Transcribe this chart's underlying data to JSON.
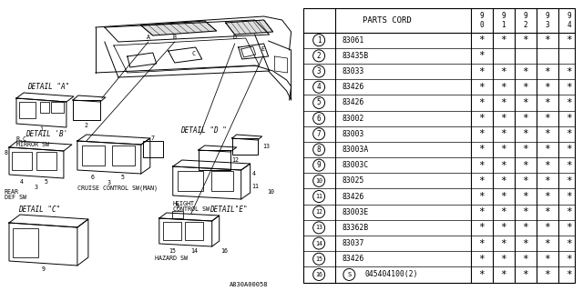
{
  "bg_color": "#ffffff",
  "parts_header": "PARTS CORD",
  "year_cols": [
    "9\n0",
    "9\n1",
    "9\n2",
    "9\n3",
    "9\n4"
  ],
  "rows": [
    {
      "num": 1,
      "part": "83061",
      "stars": [
        1,
        1,
        1,
        1,
        1
      ]
    },
    {
      "num": 2,
      "part": "83435B",
      "stars": [
        1,
        0,
        0,
        0,
        0
      ]
    },
    {
      "num": 3,
      "part": "83033",
      "stars": [
        1,
        1,
        1,
        1,
        1
      ]
    },
    {
      "num": 4,
      "part": "83426",
      "stars": [
        1,
        1,
        1,
        1,
        1
      ]
    },
    {
      "num": 5,
      "part": "83426",
      "stars": [
        1,
        1,
        1,
        1,
        1
      ]
    },
    {
      "num": 6,
      "part": "83002",
      "stars": [
        1,
        1,
        1,
        1,
        1
      ]
    },
    {
      "num": 7,
      "part": "83003",
      "stars": [
        1,
        1,
        1,
        1,
        1
      ]
    },
    {
      "num": 8,
      "part": "83003A",
      "stars": [
        1,
        1,
        1,
        1,
        1
      ]
    },
    {
      "num": 9,
      "part": "83003C",
      "stars": [
        1,
        1,
        1,
        1,
        1
      ]
    },
    {
      "num": 10,
      "part": "83025",
      "stars": [
        1,
        1,
        1,
        1,
        1
      ]
    },
    {
      "num": 11,
      "part": "83426",
      "stars": [
        1,
        1,
        1,
        1,
        1
      ]
    },
    {
      "num": 12,
      "part": "83003E",
      "stars": [
        1,
        1,
        1,
        1,
        1
      ]
    },
    {
      "num": 13,
      "part": "83362B",
      "stars": [
        1,
        1,
        1,
        1,
        1
      ]
    },
    {
      "num": 14,
      "part": "83037",
      "stars": [
        1,
        1,
        1,
        1,
        1
      ]
    },
    {
      "num": 15,
      "part": "83426",
      "stars": [
        1,
        1,
        1,
        1,
        1
      ]
    },
    {
      "num": 16,
      "part": "S045404100(2)",
      "stars": [
        1,
        1,
        1,
        1,
        1
      ]
    }
  ],
  "watermark": "A830A00058"
}
